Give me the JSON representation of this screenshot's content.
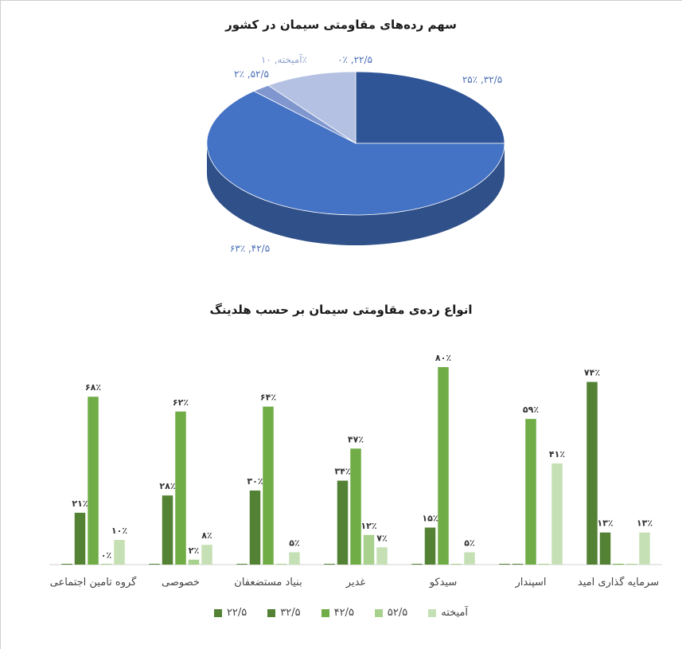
{
  "chart_data": [
    {
      "type": "pie",
      "title": "سهم رده‌های مقاومتی سیمان در کشور",
      "slices": [
        {
          "name": "۳۲/۵",
          "value": 25,
          "label": "۲۵٪ ,۳۲/۵",
          "color": "#2f5597"
        },
        {
          "name": "۴۲/۵",
          "value": 63,
          "label": "۶۳٪ ,۴۲/۵",
          "color": "#4472c4"
        },
        {
          "name": "۵۲/۵",
          "value": 2,
          "label": "۲٪ ,۵۲/۵",
          "color": "#7f96cf"
        },
        {
          "name": "آمیخته",
          "value": 10,
          "label": "آمیخته, ۱۰٪",
          "color": "#b4c1e2"
        },
        {
          "name": "۲۲/۵",
          "value": 0,
          "label": "۰٪ ,۲۲/۵",
          "color": "#1f3864"
        }
      ]
    },
    {
      "type": "bar",
      "title": "انواع رده‌ی مقاومتی سیمان بر حسب هلدینگ",
      "categories": [
        "گروه تامین اجتماعی",
        "خصوصی",
        "بنیاد مستضعفان",
        "غدیر",
        "سیدکو",
        "اسپندار",
        "سرمایه گذاری امید"
      ],
      "ylim": [
        0,
        100
      ],
      "series": [
        {
          "name": "۲۲/۵",
          "color": "#548235",
          "values": [
            0,
            0,
            0,
            0,
            0,
            0,
            74
          ],
          "labels": [
            "",
            "",
            "",
            "",
            "",
            "",
            "۷۴٪"
          ]
        },
        {
          "name": "۳۲/۵",
          "color": "#548235",
          "values": [
            21,
            28,
            30,
            34,
            15,
            0,
            13
          ],
          "labels": [
            "۲۱٪",
            "۲۸٪",
            "۳۰٪",
            "۳۴٪",
            "۱۵٪",
            "",
            "۱۳٪"
          ]
        },
        {
          "name": "۴۲/۵",
          "color": "#70ad47",
          "values": [
            68,
            62,
            64,
            47,
            80,
            59,
            0
          ],
          "labels": [
            "۶۸٪",
            "۶۲٪",
            "۶۴٪",
            "۴۷٪",
            "۸۰٪",
            "۵۹٪",
            ""
          ]
        },
        {
          "name": "۵۲/۵",
          "color": "#a9d18e",
          "values": [
            0,
            2,
            0,
            12,
            0,
            0,
            0
          ],
          "labels": [
            "۰٪",
            "۲٪",
            "",
            "۱۲٪",
            "",
            "",
            ""
          ]
        },
        {
          "name": "آمیخته",
          "color": "#c5e0b4",
          "values": [
            10,
            8,
            5,
            7,
            5,
            41,
            13
          ],
          "labels": [
            "۱۰٪",
            "۸٪",
            "۵٪",
            "۷٪",
            "۵٪",
            "۴۱٪",
            "۱۳٪"
          ]
        }
      ]
    }
  ]
}
